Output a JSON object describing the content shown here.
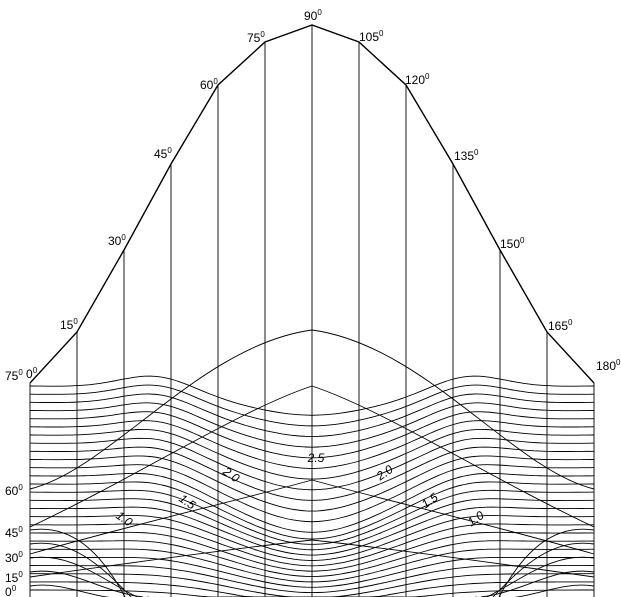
{
  "diagram": {
    "top_labels": [
      {
        "text": "0",
        "sup": "0"
      },
      {
        "text": "15",
        "sup": "0"
      },
      {
        "text": "30",
        "sup": "0"
      },
      {
        "text": "45",
        "sup": "0"
      },
      {
        "text": "60",
        "sup": "0"
      },
      {
        "text": "75",
        "sup": "0"
      },
      {
        "text": "90",
        "sup": "0"
      },
      {
        "text": "105",
        "sup": "0"
      },
      {
        "text": "120",
        "sup": "0"
      },
      {
        "text": "135",
        "sup": "0"
      },
      {
        "text": "150",
        "sup": "0"
      },
      {
        "text": "165",
        "sup": "0"
      },
      {
        "text": "180",
        "sup": "0"
      }
    ],
    "left_labels": [
      {
        "text": "75",
        "sup": "0"
      },
      {
        "text": "60",
        "sup": "0"
      },
      {
        "text": "45",
        "sup": "0"
      },
      {
        "text": "30",
        "sup": "0"
      },
      {
        "text": "15",
        "sup": "0"
      },
      {
        "text": "0",
        "sup": "0"
      }
    ],
    "contour_labels": [
      "1.0",
      "1.5",
      "2.0",
      "2.5",
      "2.0",
      "1.5",
      "1.0"
    ]
  }
}
